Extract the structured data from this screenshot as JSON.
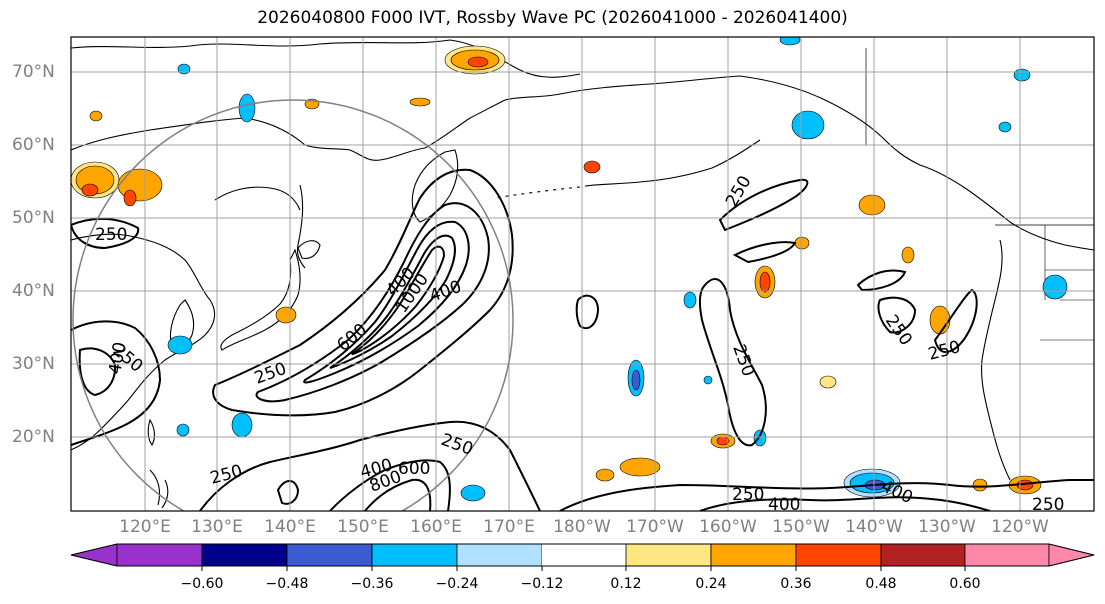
{
  "title": "2026040800 F000 IVT, Rossby Wave PC (2026041000 - 2026041400)",
  "lat_labels": [
    "70°N",
    "60°N",
    "50°N",
    "40°N",
    "30°N",
    "20°N"
  ],
  "lon_labels": [
    "120°E",
    "130°E",
    "140°E",
    "150°E",
    "160°E",
    "170°E",
    "180°W",
    "170°W",
    "160°W",
    "150°W",
    "140°W",
    "130°W",
    "120°W"
  ],
  "ivt_contour_labels": [
    "250",
    "250",
    "400",
    "1000",
    "400",
    "600",
    "250",
    "400",
    "250",
    "250",
    "400",
    "600",
    "800",
    "250",
    "250",
    "250",
    "250",
    "250",
    "400",
    "250",
    "400"
  ],
  "colorbar": {
    "ticks": [
      "−0.60",
      "−0.48",
      "−0.36",
      "−0.24",
      "−0.12",
      "0.12",
      "0.24",
      "0.36",
      "0.48",
      "0.60"
    ],
    "colors": [
      "#9932cc",
      "#00008b",
      "#3b5bd0",
      "#00bfff",
      "#b0e2ff",
      "#ffffff",
      "#ffe680",
      "#ffa500",
      "#ff4500",
      "#b22222",
      "#ff88aa"
    ]
  },
  "colors": {
    "positive_1": "#ffe680",
    "positive_2": "#ffa500",
    "positive_3": "#ff4500",
    "negative_1": "#b0e2ff",
    "negative_2": "#00bfff",
    "negative_3": "#3b5bd0",
    "grid": "#a0a0a0",
    "circle": "#808080",
    "axis_label": "#808080"
  }
}
